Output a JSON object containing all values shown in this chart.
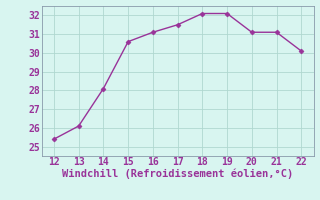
{
  "x": [
    12,
    13,
    14,
    15,
    16,
    17,
    18,
    19,
    20,
    21,
    22
  ],
  "y": [
    25.4,
    26.1,
    28.1,
    30.6,
    31.1,
    31.5,
    32.1,
    32.1,
    31.1,
    31.1,
    30.1
  ],
  "line_color": "#993399",
  "marker": "D",
  "marker_size": 2.5,
  "bg_color": "#d8f5f0",
  "grid_color": "#b0d8d0",
  "border_color": "#8899aa",
  "xlabel": "Windchill (Refroidissement éolien,°C)",
  "xlabel_color": "#993399",
  "xlabel_fontsize": 7.5,
  "tick_color": "#993399",
  "tick_fontsize": 7.0,
  "xlim": [
    11.5,
    22.5
  ],
  "ylim": [
    24.5,
    32.5
  ],
  "xticks": [
    12,
    13,
    14,
    15,
    16,
    17,
    18,
    19,
    20,
    21,
    22
  ],
  "yticks": [
    25,
    26,
    27,
    28,
    29,
    30,
    31,
    32
  ],
  "linewidth": 1.0
}
